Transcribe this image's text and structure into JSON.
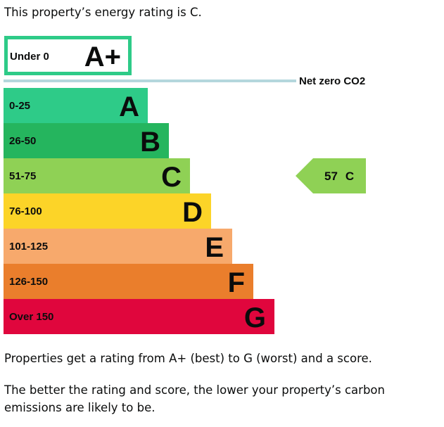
{
  "intro_text": "This property’s energy rating is C.",
  "chart_data": {
    "type": "bar",
    "categories": [
      "A+",
      "A",
      "B",
      "C",
      "D",
      "E",
      "F",
      "G"
    ],
    "ranges": [
      "Under 0",
      "0-25",
      "26-50",
      "51-75",
      "76-100",
      "101-125",
      "126-150",
      "Over 150"
    ],
    "colors": [
      "#ffffff",
      "#2ecb88",
      "#25b55e",
      "#8fd155",
      "#fcd428",
      "#f7a96c",
      "#ea7e2c",
      "#e0063d"
    ],
    "aplus_border_color": "#2ecb88",
    "net_zero_label": "Net zero CO2",
    "net_zero_line_color": "#b4d7dd",
    "current_rating": {
      "score": 57,
      "letter": "C",
      "color": "#8fd155"
    }
  },
  "footer": {
    "line1": "Properties get a rating from A+ (best) to G (worst) and a score.",
    "line2": "The better the rating and score, the lower your property’s carbon emissions are likely to be."
  }
}
